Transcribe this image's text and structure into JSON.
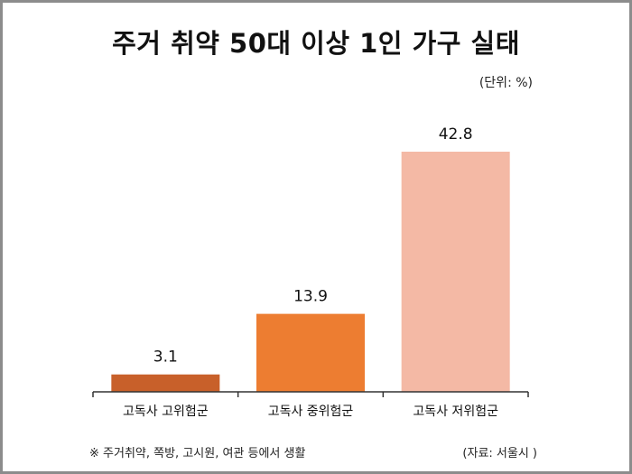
{
  "title": "주거 취약 50대 이상 1인 가구 실태",
  "unit": "(단위: %)",
  "footnote": "※ 주거취약, 쪽방, 고시원, 여관 등에서 생활",
  "source": "(자료: 서울시 )",
  "colors": {
    "frame": "#8c8c8c",
    "axis": "#333333"
  },
  "chart_data": {
    "type": "bar",
    "categories": [
      "고독사 고위험군",
      "고독사 중위험군",
      "고독사 저위험군"
    ],
    "values": [
      3.1,
      13.9,
      42.8
    ],
    "value_labels": [
      "3.1",
      "13.9",
      "42.8"
    ],
    "bar_colors": [
      "#c8602a",
      "#ed7d31",
      "#f4b9a5"
    ],
    "ylim": [
      0,
      42.8
    ],
    "grid": false,
    "legend": "none"
  }
}
